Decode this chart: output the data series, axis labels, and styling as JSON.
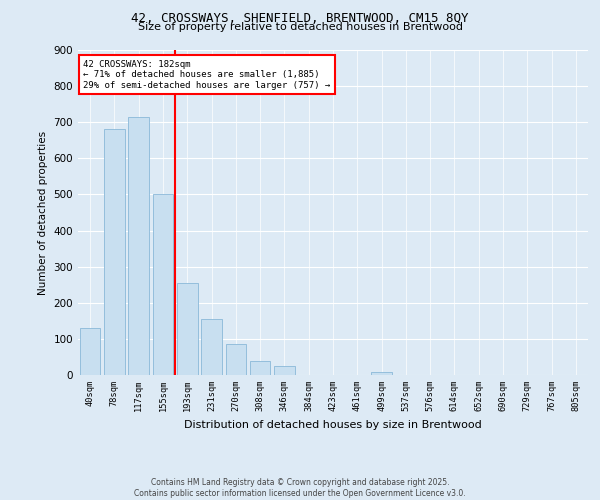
{
  "title_line1": "42, CROSSWAYS, SHENFIELD, BRENTWOOD, CM15 8QY",
  "title_line2": "Size of property relative to detached houses in Brentwood",
  "xlabel": "Distribution of detached houses by size in Brentwood",
  "ylabel": "Number of detached properties",
  "bar_labels": [
    "40sqm",
    "78sqm",
    "117sqm",
    "155sqm",
    "193sqm",
    "231sqm",
    "270sqm",
    "308sqm",
    "346sqm",
    "384sqm",
    "423sqm",
    "461sqm",
    "499sqm",
    "537sqm",
    "576sqm",
    "614sqm",
    "652sqm",
    "690sqm",
    "729sqm",
    "767sqm",
    "805sqm"
  ],
  "bar_values": [
    130,
    680,
    715,
    500,
    255,
    155,
    85,
    40,
    25,
    0,
    0,
    0,
    8,
    0,
    0,
    0,
    0,
    0,
    0,
    0,
    0
  ],
  "bar_color": "#c8dff0",
  "bar_edge_color": "#8ab8d8",
  "vline_x_idx": 3.5,
  "vline_color": "red",
  "annotation_text": "42 CROSSWAYS: 182sqm\n← 71% of detached houses are smaller (1,885)\n29% of semi-detached houses are larger (757) →",
  "annotation_box_color": "white",
  "annotation_box_edge_color": "red",
  "ylim": [
    0,
    900
  ],
  "yticks": [
    0,
    100,
    200,
    300,
    400,
    500,
    600,
    700,
    800,
    900
  ],
  "fig_bg_color": "#ddeaf5",
  "plot_bg_color": "#ddeaf5",
  "footer_line1": "Contains HM Land Registry data © Crown copyright and database right 2025.",
  "footer_line2": "Contains public sector information licensed under the Open Government Licence v3.0."
}
